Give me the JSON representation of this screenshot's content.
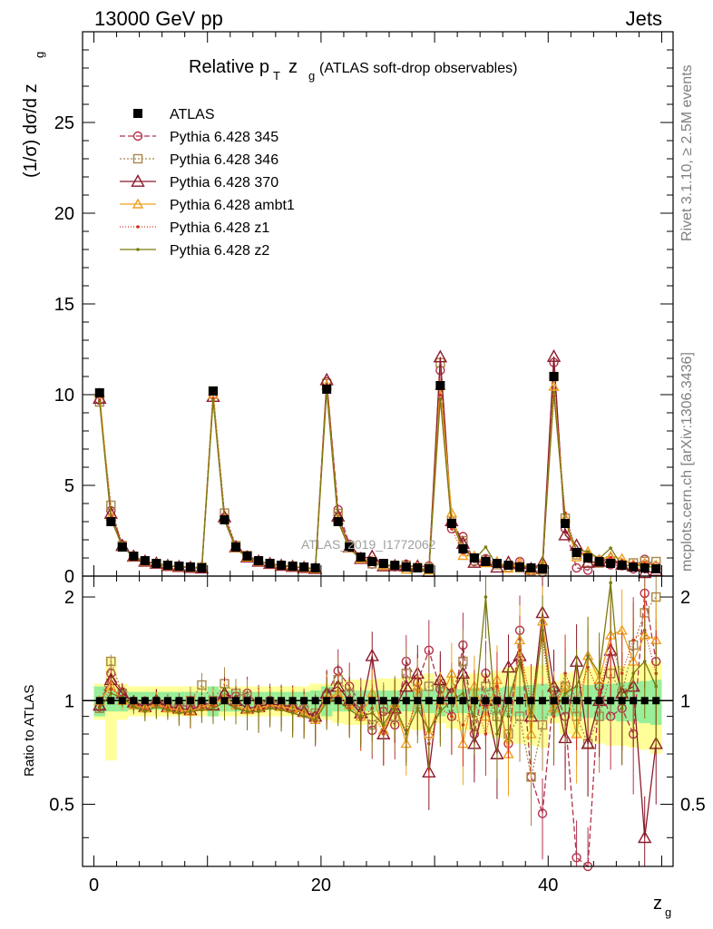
{
  "header": {
    "energy_label": "13000 GeV pp",
    "process_label": "Jets",
    "rivet_label": "Rivet 3.1.10, ≥ 2.5M events",
    "mcplots_label": "mcplots.cern.ch [arXiv:1306.3436]",
    "watermark": "ATLAS_2019_I1772062"
  },
  "chart_data": {
    "type": "line",
    "title_main": "Relative p",
    "title_sub_T": "T",
    "title_mid": " z",
    "title_sub_g": "g",
    "title_rest": " (ATLAS soft-drop observables)",
    "ylabel_main": "(1/σ) dσ/d z",
    "ylabel_sub": "g",
    "xlabel_main": "z",
    "xlabel_sub": "g",
    "ratio_ylabel": "Ratio to ATLAS",
    "xlim": [
      -1,
      51
    ],
    "ylim": [
      0,
      30
    ],
    "ratio_ylim": [
      0.33,
      2.3
    ],
    "x_ticks": [
      "0",
      "20",
      "40"
    ],
    "y_ticks": [
      "0",
      "5",
      "10",
      "15",
      "20",
      "25"
    ],
    "ratio_ticks": [
      "0.5",
      "1",
      "2"
    ],
    "x": [
      0.5,
      1.5,
      2.5,
      3.5,
      4.5,
      5.5,
      6.5,
      7.5,
      8.5,
      9.5,
      10.5,
      11.5,
      12.5,
      13.5,
      14.5,
      15.5,
      16.5,
      17.5,
      18.5,
      19.5,
      20.5,
      21.5,
      22.5,
      23.5,
      24.5,
      25.5,
      26.5,
      27.5,
      28.5,
      29.5,
      30.5,
      31.5,
      32.5,
      33.5,
      34.5,
      35.5,
      36.5,
      37.5,
      38.5,
      39.5,
      40.5,
      41.5,
      42.5,
      43.5,
      44.5,
      45.5,
      46.5,
      47.5,
      48.5,
      49.5
    ],
    "data": {
      "name": "ATLAS",
      "color": "#000000",
      "values": [
        10.1,
        3.0,
        1.6,
        1.1,
        0.85,
        0.7,
        0.6,
        0.55,
        0.5,
        0.45,
        10.2,
        3.1,
        1.6,
        1.1,
        0.85,
        0.7,
        0.6,
        0.55,
        0.5,
        0.45,
        10.3,
        3.0,
        1.6,
        1.05,
        0.8,
        0.7,
        0.6,
        0.5,
        0.45,
        0.4,
        10.5,
        2.9,
        1.5,
        1.0,
        0.8,
        0.7,
        0.6,
        0.5,
        0.45,
        0.4,
        11.0,
        2.9,
        1.3,
        1.0,
        0.8,
        0.7,
        0.6,
        0.5,
        0.45,
        0.4
      ],
      "band_inner": [
        0.1,
        0.07,
        0.07,
        0.06,
        0.06,
        0.06,
        0.06,
        0.06,
        0.06,
        0.06,
        0.1,
        0.07,
        0.07,
        0.06,
        0.06,
        0.06,
        0.06,
        0.06,
        0.06,
        0.07,
        0.1,
        0.07,
        0.07,
        0.07,
        0.07,
        0.07,
        0.07,
        0.07,
        0.08,
        0.08,
        0.1,
        0.08,
        0.08,
        0.09,
        0.09,
        0.09,
        0.1,
        0.1,
        0.11,
        0.12,
        0.1,
        0.09,
        0.1,
        0.11,
        0.12,
        0.12,
        0.13,
        0.13,
        0.14,
        0.15
      ],
      "band_outer": [
        0.12,
        0.33,
        0.12,
        0.1,
        0.1,
        0.1,
        0.1,
        0.1,
        0.1,
        0.1,
        0.1,
        0.1,
        0.1,
        0.1,
        0.1,
        0.1,
        0.1,
        0.1,
        0.1,
        0.12,
        0.12,
        0.14,
        0.15,
        0.15,
        0.15,
        0.16,
        0.16,
        0.17,
        0.18,
        0.2,
        0.14,
        0.17,
        0.18,
        0.2,
        0.2,
        0.22,
        0.25,
        0.25,
        0.26,
        0.27,
        0.14,
        0.2,
        0.22,
        0.24,
        0.25,
        0.26,
        0.26,
        0.27,
        0.28,
        0.3
      ]
    },
    "series": [
      {
        "name": "Pythia 6.428 345",
        "color": "#b2324a",
        "marker": "circle",
        "dash": "6,3",
        "ratio": [
          0.96,
          1.2,
          1.06,
          0.99,
          0.97,
          1.0,
          0.98,
          0.97,
          0.96,
          0.98,
          0.98,
          1.04,
          1.03,
          1.05,
          0.98,
          1.0,
          0.98,
          0.96,
          0.95,
          0.9,
          1.04,
          1.22,
          1.1,
          0.98,
          0.82,
          0.93,
          0.85,
          1.3,
          1.13,
          1.4,
          1.08,
          0.9,
          1.45,
          0.8,
          1.2,
          1.0,
          0.75,
          1.6,
          0.6,
          0.47,
          1.07,
          0.9,
          0.35,
          0.33,
          1.1,
          0.9,
          0.95,
          0.8,
          2.05,
          1.3
        ]
      },
      {
        "name": "Pythia 6.428 346",
        "color": "#a8874a",
        "marker": "square",
        "dash": "2,2",
        "ratio": [
          0.95,
          1.3,
          1.05,
          0.98,
          0.96,
          0.98,
          0.97,
          0.96,
          1.0,
          1.11,
          1.0,
          1.12,
          1.05,
          1.03,
          0.97,
          0.99,
          0.97,
          0.95,
          0.94,
          0.92,
          1.03,
          1.15,
          1.05,
          0.97,
          0.85,
          0.95,
          0.9,
          1.2,
          1.05,
          1.1,
          1.12,
          1.05,
          1.3,
          0.85,
          1.1,
          0.9,
          0.8,
          0.9,
          0.6,
          0.85,
          1.0,
          1.1,
          0.9,
          0.75,
          0.9,
          1.2,
          1.05,
          1.45,
          1.8,
          2.0
        ]
      },
      {
        "name": "Pythia 6.428 370",
        "color": "#8b1a2b",
        "marker": "triangle",
        "dash": "",
        "ratio": [
          0.97,
          1.15,
          1.05,
          0.99,
          0.96,
          1.0,
          0.96,
          0.95,
          0.94,
          0.97,
          0.97,
          1.05,
          1.0,
          0.95,
          0.96,
          0.98,
          0.97,
          0.96,
          0.93,
          0.9,
          1.05,
          1.1,
          1.0,
          0.92,
          1.35,
          0.8,
          0.95,
          1.1,
          1.2,
          0.62,
          1.15,
          1.05,
          1.2,
          0.75,
          1.0,
          0.7,
          1.25,
          1.35,
          0.9,
          1.8,
          1.1,
          0.78,
          1.3,
          0.75,
          1.0,
          1.4,
          1.05,
          1.1,
          0.4,
          0.75
        ]
      },
      {
        "name": "Pythia 6.428 ambt1",
        "color": "#f0a020",
        "marker": "triangle-open",
        "dash": "",
        "ratio": [
          1.0,
          1.1,
          1.0,
          0.97,
          0.95,
          0.98,
          0.95,
          0.94,
          0.93,
          0.96,
          0.98,
          1.02,
          0.97,
          0.94,
          0.95,
          0.97,
          0.96,
          0.95,
          0.92,
          0.88,
          1.02,
          1.05,
          0.97,
          0.9,
          1.05,
          0.82,
          0.98,
          0.75,
          1.1,
          0.8,
          1.0,
          1.2,
          0.75,
          1.1,
          0.9,
          1.15,
          0.7,
          1.5,
          0.8,
          1.7,
          0.95,
          1.1,
          0.8,
          1.35,
          1.15,
          1.55,
          1.6,
          1.3,
          1.55,
          1.5
        ]
      },
      {
        "name": "Pythia 6.428 z1",
        "color": "#d83020",
        "marker": "dot",
        "dash": "1,2",
        "ratio": [
          0.96,
          1.08,
          1.03,
          0.98,
          0.94,
          0.97,
          0.95,
          0.93,
          0.92,
          0.95,
          0.96,
          1.0,
          0.96,
          0.93,
          0.94,
          0.96,
          0.95,
          0.93,
          0.9,
          0.87,
          1.0,
          1.03,
          0.95,
          0.88,
          0.95,
          0.8,
          0.95,
          0.82,
          1.0,
          0.75,
          0.95,
          0.9,
          0.85,
          1.0,
          0.8,
          1.1,
          0.9,
          1.4,
          1.0,
          1.5,
          0.9,
          1.2,
          1.0,
          1.25,
          1.05,
          1.45,
          1.2,
          1.5,
          1.6,
          1.2
        ]
      },
      {
        "name": "Pythia 6.428 z2",
        "color": "#7a7a10",
        "marker": "dot",
        "dash": "",
        "ratio": [
          0.95,
          1.05,
          1.02,
          0.96,
          0.93,
          0.96,
          0.94,
          0.92,
          0.93,
          0.94,
          0.95,
          0.99,
          0.95,
          0.93,
          0.93,
          0.95,
          0.94,
          0.92,
          0.9,
          0.88,
          0.99,
          1.0,
          0.94,
          0.9,
          0.92,
          0.85,
          0.97,
          0.8,
          0.95,
          0.82,
          0.93,
          1.0,
          1.05,
          0.9,
          2.0,
          0.8,
          1.0,
          1.3,
          0.9,
          1.6,
          0.92,
          1.05,
          1.1,
          1.35,
          1.2,
          2.2,
          0.95,
          1.2,
          1.3,
          1.1
        ]
      }
    ]
  }
}
